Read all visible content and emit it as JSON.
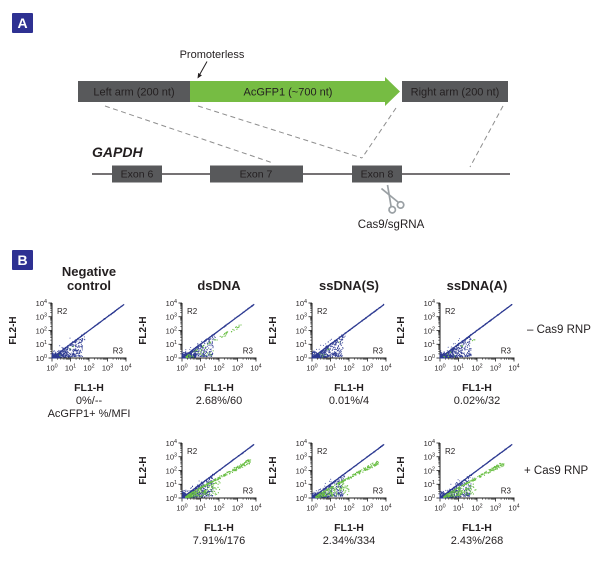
{
  "panel_a": {
    "badge": "A",
    "promoterless_label": "Promoterless",
    "left_arm": "Left arm (200 nt)",
    "insert": "AcGFP1 (~700 nt)",
    "right_arm": "Right arm (200 nt)",
    "gene_name": "GAPDH",
    "exons": [
      "Exon 6",
      "Exon 7",
      "Exon 8"
    ],
    "cut_label": "Cas9/sgRNA",
    "colors": {
      "arm_box_gray": "#58595b",
      "insert_arrow_green": "#76bc43",
      "badge_navy": "#2e3192",
      "dashed_line_gray": "#8e8e8e",
      "scissors_gray": "#9aa0a4"
    }
  },
  "panel_b": {
    "badge": "B",
    "row_labels": {
      "top": "– Cas9 RNP",
      "bottom": "+ Cas9 RNP"
    }
  },
  "chart_data": {
    "type": "scatter",
    "description": "Flow cytometry dot plots (log-log) detecting AcGFP1 knock-in at GAPDH; blue = all events, green = AcGFP1-positive events",
    "xlabel": "FL1-H",
    "ylabel": "FL2-H",
    "x_ticks": [
      "10^0",
      "10^1",
      "10^2",
      "10^3",
      "10^4"
    ],
    "y_ticks": [
      "10^0",
      "10^1",
      "10^2",
      "10^3",
      "10^4"
    ],
    "tick_exponents": [
      "0",
      "1",
      "2",
      "3",
      "4"
    ],
    "xlim": [
      1,
      10000
    ],
    "ylim": [
      1,
      10000
    ],
    "log_scale": true,
    "gates": [
      "R2",
      "R3"
    ],
    "stat_caption": "AcGFP1+ %/MFI",
    "colors": {
      "all_events": "#2e3b92",
      "acgfp1_positive": "#6abf44"
    },
    "plots": [
      {
        "title": "Negative\ncontrol",
        "column": "Negative control",
        "condition": "– Cas9 RNP",
        "stat": "0%/--",
        "acgfp1_pos_pct": 0,
        "mfi": "--",
        "green": {
          "band": 2,
          "fan": 1,
          "reach": 0.3
        }
      },
      {
        "title": "dsDNA",
        "column": "dsDNA",
        "condition": "– Cas9 RNP",
        "stat": "2.68%/60",
        "acgfp1_pos_pct": 2.68,
        "mfi": 60,
        "green": {
          "band": 45,
          "fan": 32,
          "reach": 0.8
        }
      },
      {
        "title": "ssDNA(S)",
        "column": "ssDNA(S)",
        "condition": "– Cas9 RNP",
        "stat": "0.01%/4",
        "acgfp1_pos_pct": 0.01,
        "mfi": 4,
        "green": {
          "band": 4,
          "fan": 3,
          "reach": 0.4
        }
      },
      {
        "title": "ssDNA(A)",
        "column": "ssDNA(A)",
        "condition": "– Cas9 RNP",
        "stat": "0.02%/32",
        "acgfp1_pos_pct": 0.02,
        "mfi": 32,
        "green": {
          "band": 7,
          "fan": 4,
          "reach": 0.55
        }
      },
      {
        "column": "dsDNA",
        "condition": "+ Cas9 RNP",
        "stat": "7.91%/176",
        "acgfp1_pos_pct": 7.91,
        "mfi": 176,
        "green": {
          "band": 220,
          "fan": 150,
          "reach": 0.93
        }
      },
      {
        "column": "ssDNA(S)",
        "condition": "+ Cas9 RNP",
        "stat": "2.34%/334",
        "acgfp1_pos_pct": 2.34,
        "mfi": 334,
        "green": {
          "band": 190,
          "fan": 125,
          "reach": 0.9
        }
      },
      {
        "column": "ssDNA(A)",
        "condition": "+ Cas9 RNP",
        "stat": "2.43%/268",
        "acgfp1_pos_pct": 2.43,
        "mfi": 268,
        "green": {
          "band": 175,
          "fan": 115,
          "reach": 0.87
        }
      }
    ]
  }
}
